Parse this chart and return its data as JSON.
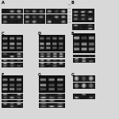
{
  "bg_color": "#d8d8d8",
  "white": "#ffffff",
  "black": "#000000",
  "figsize": [
    1.5,
    1.5
  ],
  "dpi": 100
}
